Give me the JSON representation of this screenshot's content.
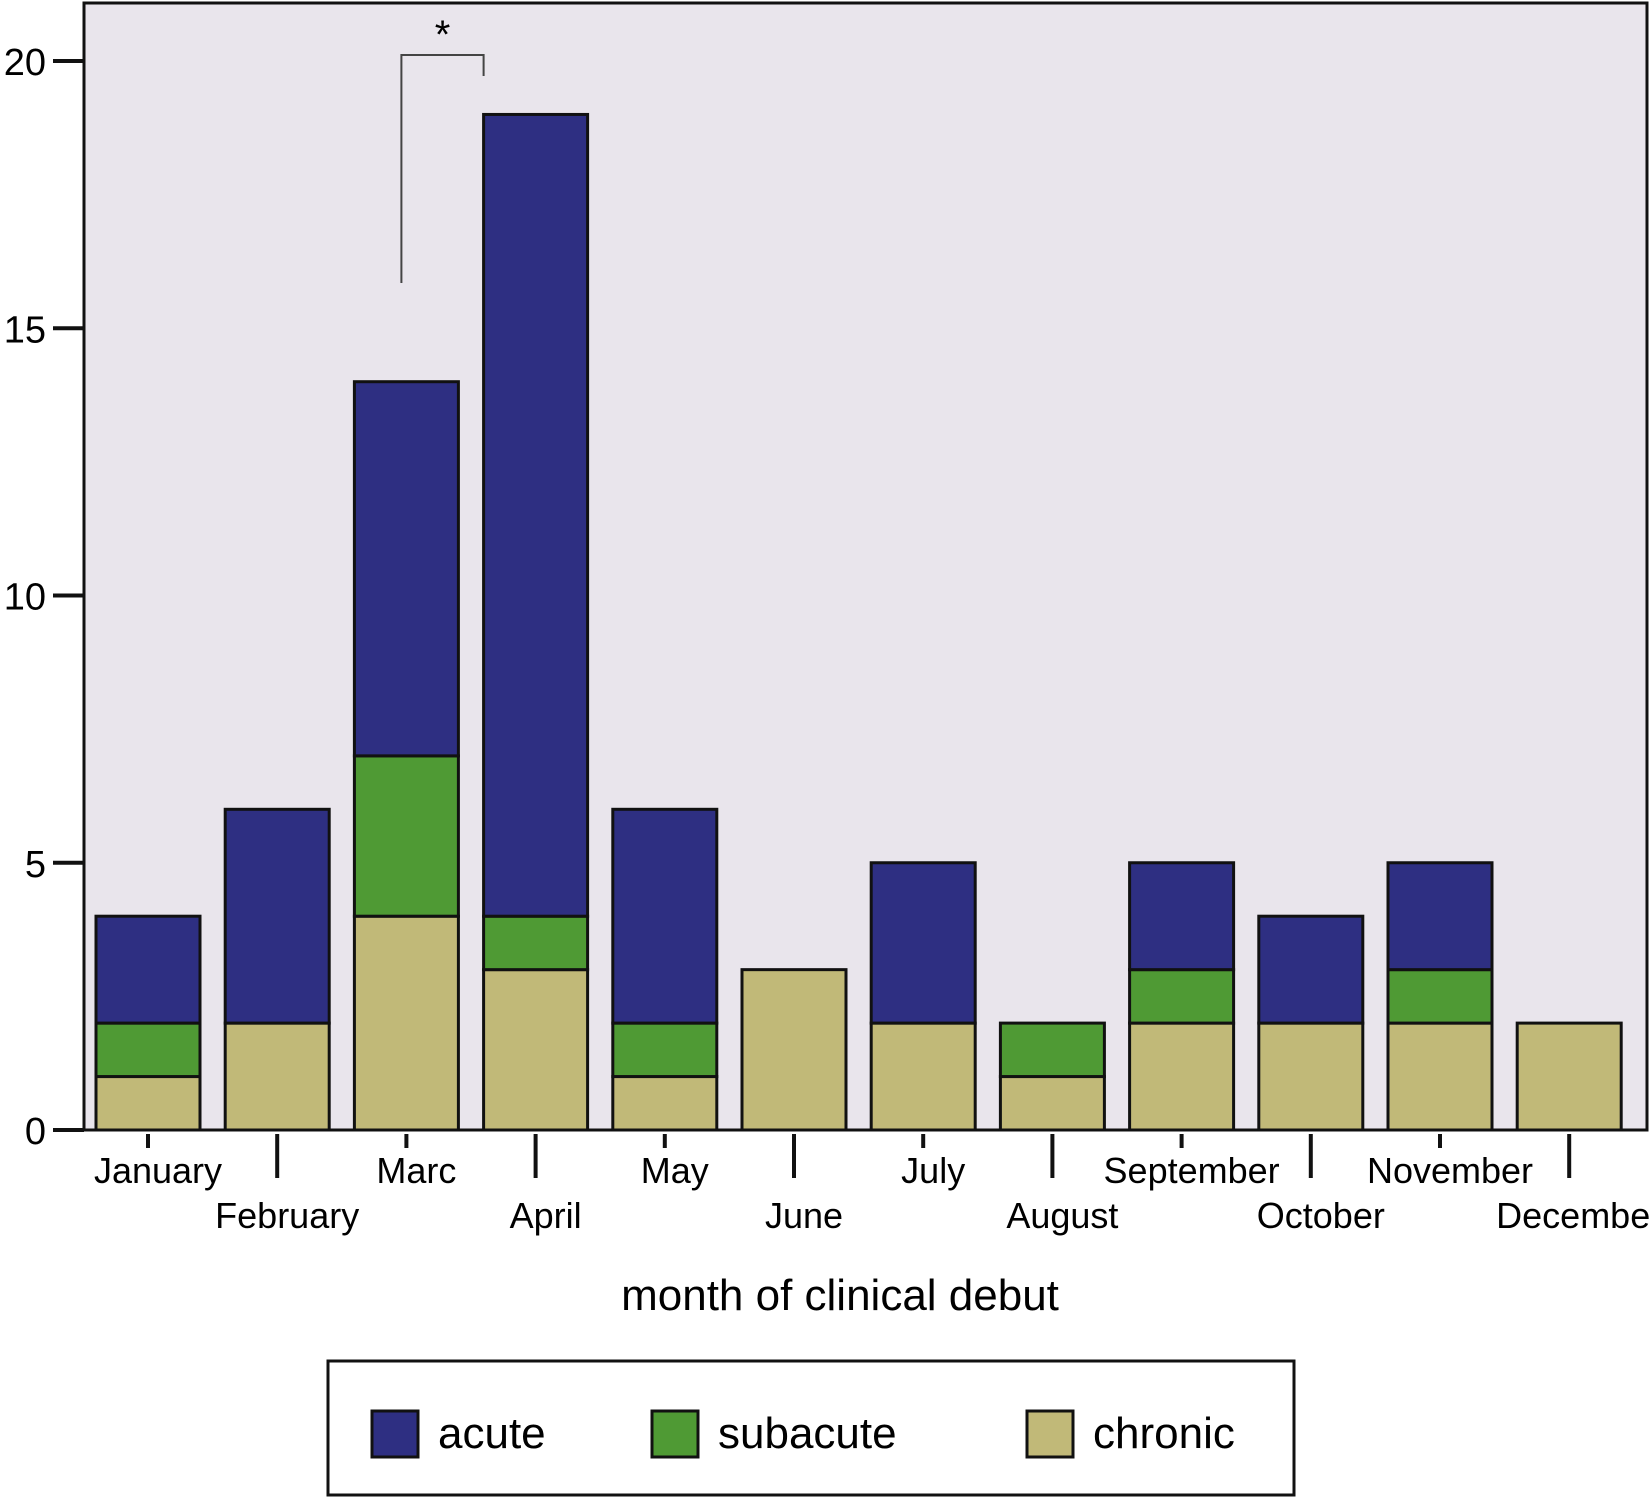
{
  "chart_data": {
    "type": "bar",
    "stacked": true,
    "categories": [
      "January",
      "February",
      "Marc",
      "April",
      "May",
      "June",
      "July",
      "August",
      "September",
      "October",
      "November",
      "December"
    ],
    "series": [
      {
        "name": "chronic",
        "color": "#c1b978",
        "values": [
          1,
          2,
          4,
          3,
          1,
          3,
          2,
          1,
          2,
          2,
          2,
          2
        ]
      },
      {
        "name": "subacute",
        "color": "#4f9a34",
        "values": [
          1,
          0,
          3,
          1,
          1,
          0,
          0,
          1,
          1,
          0,
          1,
          0
        ]
      },
      {
        "name": "acute",
        "color": "#2e2f82",
        "values": [
          2,
          4,
          7,
          15,
          4,
          0,
          3,
          0,
          2,
          2,
          2,
          0
        ]
      }
    ],
    "legend_order": [
      "acute",
      "subacute",
      "chronic"
    ],
    "legend_position": "bottom",
    "xlabel": "month of clinical debut",
    "ylabel": "",
    "ylim": [
      0,
      20
    ],
    "yticks": [
      0,
      5,
      10,
      15,
      20
    ],
    "grid": false,
    "plot_background": "#e9e5ec",
    "annotations": [
      {
        "text": "*",
        "from_category": "Marc",
        "to_category": "April"
      }
    ]
  }
}
